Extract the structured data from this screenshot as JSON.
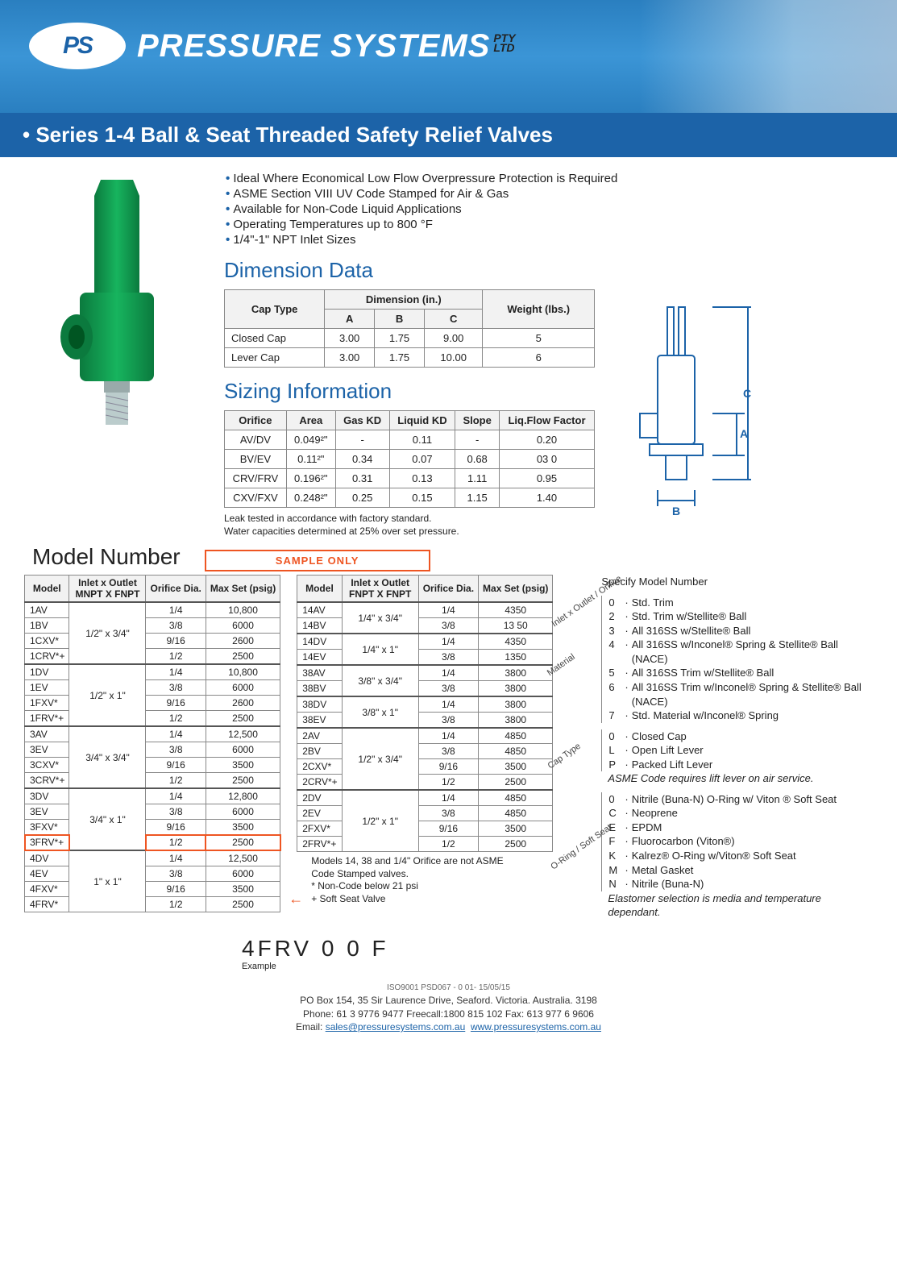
{
  "brand": {
    "badge": "PS",
    "name": "PRESSURE SYSTEMS",
    "suffix_top": "PTY",
    "suffix_bot": "LTD"
  },
  "title": "Series 1-4 Ball & Seat Threaded Safety Relief Valves",
  "features": [
    "Ideal Where Economical Low Flow Overpressure Protection is Required",
    "ASME Section VIII UV Code Stamped for Air & Gas",
    "Available for Non-Code Liquid Applications",
    "Operating Temperatures up to 800 °F",
    "1/4\"-1\" NPT Inlet Sizes"
  ],
  "dimension": {
    "heading": "Dimension Data",
    "col_cap": "Cap Type",
    "col_dim": "Dimension (in.)",
    "col_a": "A",
    "col_b": "B",
    "col_c": "C",
    "col_w": "Weight (lbs.)",
    "rows": [
      {
        "cap": "Closed Cap",
        "a": "3.00",
        "b": "1.75",
        "c": "9.00",
        "w": "5"
      },
      {
        "cap": "Lever Cap",
        "a": "3.00",
        "b": "1.75",
        "c": "10.00",
        "w": "6"
      }
    ]
  },
  "sizing": {
    "heading": "Sizing Information",
    "cols": [
      "Orifice",
      "Area",
      "Gas KD",
      "Liquid KD",
      "Slope",
      "Liq.Flow Factor"
    ],
    "rows": [
      {
        "o": "AV/DV",
        "a": "0.049²\"",
        "g": "-",
        "l": "0.11",
        "s": "-",
        "f": "0.20"
      },
      {
        "o": "BV/EV",
        "a": "0.11²\"",
        "g": "0.34",
        "l": "0.07",
        "s": "0.68",
        "f": "03 0"
      },
      {
        "o": "CRV/FRV",
        "a": "0.196²\"",
        "g": "0.31",
        "l": "0.13",
        "s": "1.11",
        "f": "0.95"
      },
      {
        "o": "CXV/FXV",
        "a": "0.248²\"",
        "g": "0.25",
        "l": "0.15",
        "s": "1.15",
        "f": "1.40"
      }
    ],
    "note1": "Leak tested in accordance with factory standard.",
    "note2": "Water capacities determined at 25% over set pressure."
  },
  "sample_label": "SAMPLE ONLY",
  "model_heading": "Model Number",
  "model_cols1": {
    "m": "Model",
    "io": "Inlet x Outlet MNPT X FNPT",
    "od": "Orifice Dia.",
    "mp": "Max Set (psig)"
  },
  "model_cols2": {
    "m": "Model",
    "io": "Inlet x Outlet FNPT X FNPT",
    "od": "Orifice Dia.",
    "mp": "Max Set (psig)"
  },
  "models1": [
    {
      "g": 0,
      "m": "1AV",
      "io": "1/2\" x 3/4\"",
      "od": "1/4",
      "mp": "10,800"
    },
    {
      "g": 0,
      "m": "1BV",
      "io": "",
      "od": "3/8",
      "mp": "6000"
    },
    {
      "g": 0,
      "m": "1CXV*",
      "io": "",
      "od": "9/16",
      "mp": "2600"
    },
    {
      "g": 0,
      "m": "1CRV*+",
      "io": "",
      "od": "1/2",
      "mp": "2500"
    },
    {
      "g": 1,
      "m": "1DV",
      "io": "1/2\" x 1\"",
      "od": "1/4",
      "mp": "10,800"
    },
    {
      "g": 1,
      "m": "1EV",
      "io": "",
      "od": "3/8",
      "mp": "6000"
    },
    {
      "g": 1,
      "m": "1FXV*",
      "io": "",
      "od": "9/16",
      "mp": "2600"
    },
    {
      "g": 1,
      "m": "1FRV*+",
      "io": "",
      "od": "1/2",
      "mp": "2500"
    },
    {
      "g": 2,
      "m": "3AV",
      "io": "3/4\" x 3/4\"",
      "od": "1/4",
      "mp": "12,500"
    },
    {
      "g": 2,
      "m": "3EV",
      "io": "",
      "od": "3/8",
      "mp": "6000"
    },
    {
      "g": 2,
      "m": "3CXV*",
      "io": "",
      "od": "9/16",
      "mp": "3500"
    },
    {
      "g": 2,
      "m": "3CRV*+",
      "io": "",
      "od": "1/2",
      "mp": "2500"
    },
    {
      "g": 3,
      "m": "3DV",
      "io": "3/4\" x 1\"",
      "od": "1/4",
      "mp": "12,800"
    },
    {
      "g": 3,
      "m": "3EV",
      "io": "",
      "od": "3/8",
      "mp": "6000"
    },
    {
      "g": 3,
      "m": "3FXV*",
      "io": "",
      "od": "9/16",
      "mp": "3500"
    },
    {
      "g": 3,
      "m": "3FRV*+",
      "io": "",
      "od": "1/2",
      "mp": "2500",
      "hl": true
    },
    {
      "g": 4,
      "m": "4DV",
      "io": "1\" x 1\"",
      "od": "1/4",
      "mp": "12,500"
    },
    {
      "g": 4,
      "m": "4EV",
      "io": "",
      "od": "3/8",
      "mp": "6000"
    },
    {
      "g": 4,
      "m": "4FXV*",
      "io": "",
      "od": "9/16",
      "mp": "3500"
    },
    {
      "g": 4,
      "m": "4FRV*",
      "io": "",
      "od": "1/2",
      "mp": "2500"
    }
  ],
  "models2": [
    {
      "g": 0,
      "m": "14AV",
      "io": "1/4\" x 3/4\"",
      "od": "1/4",
      "mp": "4350"
    },
    {
      "g": 0,
      "m": "14BV",
      "io": "",
      "od": "3/8",
      "mp": "13 50"
    },
    {
      "g": 1,
      "m": "14DV",
      "io": "1/4\" x 1\"",
      "od": "1/4",
      "mp": "4350"
    },
    {
      "g": 1,
      "m": "14EV",
      "io": "",
      "od": "3/8",
      "mp": "1350"
    },
    {
      "g": 2,
      "m": "38AV",
      "io": "3/8\" x 3/4\"",
      "od": "1/4",
      "mp": "3800"
    },
    {
      "g": 2,
      "m": "38BV",
      "io": "",
      "od": "3/8",
      "mp": "3800"
    },
    {
      "g": 3,
      "m": "38DV",
      "io": "3/8\" x 1\"",
      "od": "1/4",
      "mp": "3800"
    },
    {
      "g": 3,
      "m": "38EV",
      "io": "",
      "od": "3/8",
      "mp": "3800"
    },
    {
      "g": 4,
      "m": "2AV",
      "io": "1/2\" x 3/4\"",
      "od": "1/4",
      "mp": "4850"
    },
    {
      "g": 4,
      "m": "2BV",
      "io": "",
      "od": "3/8",
      "mp": "4850"
    },
    {
      "g": 4,
      "m": "2CXV*",
      "io": "",
      "od": "9/16",
      "mp": "3500"
    },
    {
      "g": 4,
      "m": "2CRV*+",
      "io": "",
      "od": "1/2",
      "mp": "2500"
    },
    {
      "g": 5,
      "m": "2DV",
      "io": "1/2\" x 1\"",
      "od": "1/4",
      "mp": "4850"
    },
    {
      "g": 5,
      "m": "2EV",
      "io": "",
      "od": "3/8",
      "mp": "4850"
    },
    {
      "g": 5,
      "m": "2FXV*",
      "io": "",
      "od": "9/16",
      "mp": "3500"
    },
    {
      "g": 5,
      "m": "2FRV*+",
      "io": "",
      "od": "1/2",
      "mp": "2500"
    }
  ],
  "models2_note1": "Models 14, 38 and 1/4\" Orifice are not ASME Code Stamped valves.",
  "models2_note2": "* Non-Code below 21 psi",
  "models2_note3": "+ Soft Seat Valve",
  "spec": {
    "title": "Specify Model Number",
    "lead1": "Inlet x Outlet / Orifice",
    "lead2": "Material",
    "lead3": "Cap Type",
    "lead4": "O-Ring / Soft Seat",
    "material": [
      {
        "c": "0",
        "t": "Std. Trim"
      },
      {
        "c": "2",
        "t": "Std. Trim w/Stellite® Ball"
      },
      {
        "c": "3",
        "t": "All 316SS w/Stellite® Ball"
      },
      {
        "c": "4",
        "t": "All 316SS w/Inconel® Spring & Stellite® Ball (NACE)"
      },
      {
        "c": "5",
        "t": "All 316SS Trim w/Stellite® Ball"
      },
      {
        "c": "6",
        "t": "All 316SS Trim w/Inconel® Spring & Stellite® Ball (NACE)"
      },
      {
        "c": "7",
        "t": "Std. Material w/Inconel® Spring"
      }
    ],
    "cap": [
      {
        "c": "0",
        "t": "Closed Cap"
      },
      {
        "c": "L",
        "t": "Open Lift Lever"
      },
      {
        "c": "P",
        "t": "Packed Lift Lever"
      }
    ],
    "cap_note": "ASME Code requires lift lever on air service.",
    "oring": [
      {
        "c": "0",
        "t": "Nitrile (Buna-N) O-Ring w/ Viton ® Soft Seat"
      },
      {
        "c": "C",
        "t": "Neoprene"
      },
      {
        "c": "E",
        "t": "EPDM"
      },
      {
        "c": "F",
        "t": "Fluorocarbon (Viton®)"
      },
      {
        "c": "K",
        "t": "Kalrez® O-Ring w/Viton® Soft Seat"
      },
      {
        "c": "M",
        "t": "Metal Gasket"
      },
      {
        "c": "N",
        "t": "Nitrile (Buna-N)"
      }
    ],
    "oring_note": "Elastomer selection is media and temperature dependant."
  },
  "example": {
    "code": "4FRV  0  0  F",
    "label": "Example"
  },
  "footer": {
    "iso": "ISO9001  PSD067 - 0 01-  15/05/15",
    "addr": "PO Box 154, 35 Sir Laurence Drive, Seaford. Victoria. Australia. 3198",
    "phone": "Phone: 61 3 9776 9477   Freecall:1800 815 102   Fax: 613 977 6 9606",
    "email_lbl": "Email: ",
    "email": "sales@pressuresystems.com.au",
    "web": "www.pressuresystems.com.au"
  },
  "colors": {
    "brand_blue": "#1c63a8",
    "valve_green": "#0e9a4f",
    "highlight_red": "#e5372b"
  }
}
